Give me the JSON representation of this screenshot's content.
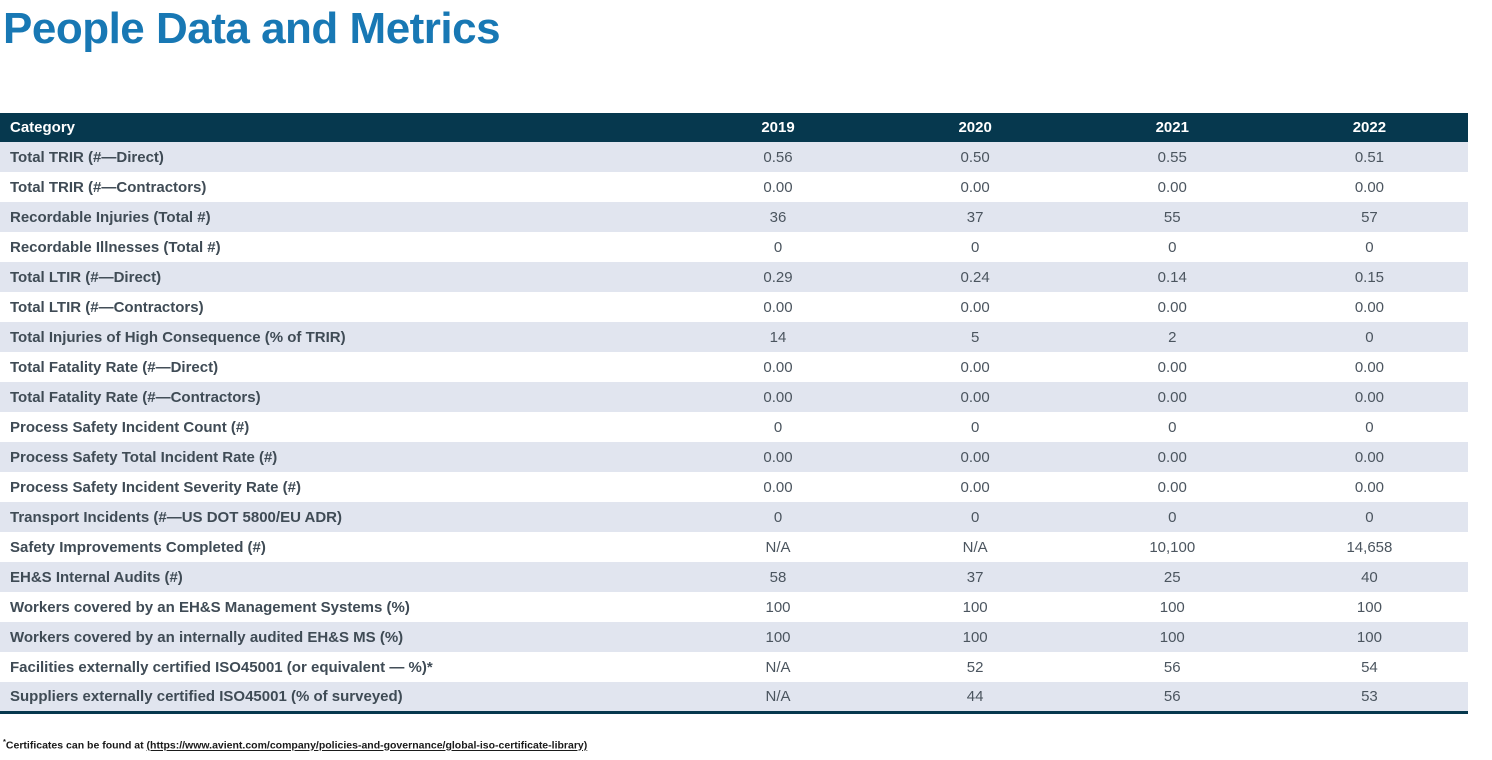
{
  "page": {
    "title": "People Data and Metrics"
  },
  "colors": {
    "title_color": "#1878b4",
    "header_bg": "#06384e",
    "row_alt_bg": "#e1e5ef",
    "category_text": "#3f4b55",
    "value_text": "#4b555f"
  },
  "table": {
    "header": {
      "category_label": "Category",
      "years": [
        "2019",
        "2020",
        "2021",
        "2022"
      ]
    },
    "rows": [
      {
        "category": "Total TRIR (#—Direct)",
        "values": [
          "0.56",
          "0.50",
          "0.55",
          "0.51"
        ]
      },
      {
        "category": "Total TRIR (#—Contractors)",
        "values": [
          "0.00",
          "0.00",
          "0.00",
          "0.00"
        ]
      },
      {
        "category": "Recordable Injuries (Total #)",
        "values": [
          "36",
          "37",
          "55",
          "57"
        ]
      },
      {
        "category": "Recordable Illnesses (Total #)",
        "values": [
          "0",
          "0",
          "0",
          "0"
        ]
      },
      {
        "category": "Total LTIR (#—Direct)",
        "values": [
          "0.29",
          "0.24",
          "0.14",
          "0.15"
        ]
      },
      {
        "category": "Total LTIR (#—Contractors)",
        "values": [
          "0.00",
          "0.00",
          "0.00",
          "0.00"
        ]
      },
      {
        "category": "Total Injuries of High Consequence (% of TRIR)",
        "values": [
          "14",
          "5",
          "2",
          "0"
        ]
      },
      {
        "category": "Total Fatality Rate (#—Direct)",
        "values": [
          "0.00",
          "0.00",
          "0.00",
          "0.00"
        ]
      },
      {
        "category": "Total Fatality Rate (#—Contractors)",
        "values": [
          "0.00",
          "0.00",
          "0.00",
          "0.00"
        ]
      },
      {
        "category": "Process Safety Incident Count (#)",
        "values": [
          "0",
          "0",
          "0",
          "0"
        ]
      },
      {
        "category": "Process Safety Total Incident Rate (#)",
        "values": [
          "0.00",
          "0.00",
          "0.00",
          "0.00"
        ]
      },
      {
        "category": "Process Safety Incident Severity Rate (#)",
        "values": [
          "0.00",
          "0.00",
          "0.00",
          "0.00"
        ]
      },
      {
        "category": "Transport Incidents (#—US DOT 5800/EU ADR)",
        "values": [
          "0",
          "0",
          "0",
          "0"
        ]
      },
      {
        "category": "Safety Improvements Completed (#)",
        "values": [
          "N/A",
          "N/A",
          "10,100",
          "14,658"
        ]
      },
      {
        "category": "EH&S Internal Audits (#)",
        "values": [
          "58",
          "37",
          "25",
          "40"
        ]
      },
      {
        "category": "Workers covered by an EH&S Management Systems (%)",
        "values": [
          "100",
          "100",
          "100",
          "100"
        ]
      },
      {
        "category": "Workers covered by an internally audited EH&S MS (%)",
        "values": [
          "100",
          "100",
          "100",
          "100"
        ]
      },
      {
        "category": "Facilities externally certified ISO45001 (or equivalent — %)*",
        "values": [
          "N/A",
          "52",
          "56",
          "54"
        ]
      },
      {
        "category": "Suppliers externally certified ISO45001 (% of surveyed)",
        "values": [
          "N/A",
          "44",
          "56",
          "53"
        ]
      }
    ]
  },
  "footnote": {
    "asterisk": "*",
    "prefix": "Certificates can be found at ",
    "link_text": "(https://www.avient.com/company/policies-and-governance/global-iso-certificate-library)"
  }
}
